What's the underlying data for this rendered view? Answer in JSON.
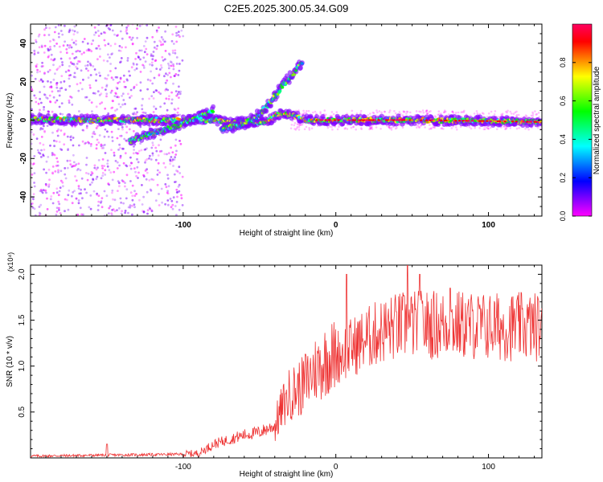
{
  "title": "C2E5.2025.300.05.34.G09",
  "chart_data": [
    {
      "type": "heatmap",
      "name": "spectrogram",
      "xlabel": "Height of straight line (km)",
      "ylabel": "Frequency (Hz)",
      "xlim": [
        -200,
        135
      ],
      "ylim": [
        -50,
        50
      ],
      "xticks": [
        -100,
        0,
        100
      ],
      "yticks": [
        -40,
        -20,
        0,
        20,
        40
      ],
      "tick_labels_x": [
        "-100",
        "0",
        "100"
      ],
      "tick_labels_y": [
        "-40",
        "-20",
        "0",
        "20",
        "40"
      ],
      "colorbar": {
        "label": "Normalized spectral amplitude",
        "range": [
          0,
          1
        ],
        "ticks": [
          "0.0",
          "0.2",
          "0.4",
          "0.6",
          "0.8"
        ],
        "colors": [
          "#ff00ff",
          "#8000ff",
          "#0000ff",
          "#0080ff",
          "#00ffff",
          "#00ff80",
          "#00ff00",
          "#80ff00",
          "#ffff00",
          "#ff8000",
          "#ff0000",
          "#ff0060"
        ]
      },
      "features": [
        {
          "name": "noise-region",
          "x_range": [
            -200,
            -100
          ],
          "freq_range": [
            -50,
            50
          ]
        },
        {
          "name": "main-band",
          "x": [
            -200,
            -160,
            -130,
            -120,
            -100,
            -80,
            -70,
            -60,
            -45,
            -38,
            -35,
            -30,
            -20,
            0,
            50,
            100,
            135
          ],
          "freq": [
            0.5,
            0,
            0,
            0,
            0,
            0,
            -1,
            -1,
            -1,
            3,
            3,
            3,
            0,
            0,
            0,
            -0.5,
            -1
          ]
        },
        {
          "name": "lower-branch",
          "x": [
            -135,
            -120,
            -100,
            -80
          ],
          "freq": [
            -11,
            -7,
            -2,
            5
          ]
        },
        {
          "name": "upper-branch",
          "x": [
            -75,
            -60,
            -50,
            -42,
            -35,
            -28,
            -22
          ],
          "freq": [
            -5,
            -2,
            3,
            10,
            18,
            24,
            30
          ]
        }
      ]
    },
    {
      "type": "line",
      "name": "snr",
      "xlabel": "Height of straight line (km)",
      "ylabel": "SNR (10 * v/v)",
      "multiplier_label": "(x10⁴)",
      "xlim": [
        -200,
        135
      ],
      "ylim": [
        0,
        2.1
      ],
      "xticks": [
        -100,
        0,
        100
      ],
      "yticks": [
        0.5,
        1.0,
        1.5,
        2.0
      ],
      "tick_labels_x": [
        "-100",
        "0",
        "100"
      ],
      "tick_labels_y": [
        "0.5",
        "1.0",
        "1.5",
        "2.0"
      ],
      "color": "#ee3333",
      "series": [
        {
          "name": "SNR envelope",
          "x": [
            -200,
            -150,
            -100,
            -90,
            -80,
            -70,
            -60,
            -50,
            -40,
            -35,
            -30,
            -25,
            -20,
            -15,
            -10,
            -5,
            0,
            10,
            20,
            30,
            40,
            50,
            60,
            70,
            80,
            90,
            100,
            110,
            120,
            135
          ],
          "values": [
            0.02,
            0.03,
            0.04,
            0.05,
            0.15,
            0.2,
            0.25,
            0.28,
            0.35,
            0.55,
            0.7,
            0.75,
            0.8,
            0.95,
            1.0,
            1.1,
            1.1,
            1.2,
            1.3,
            1.38,
            1.43,
            1.45,
            1.45,
            1.45,
            1.45,
            1.44,
            1.43,
            1.43,
            1.43,
            1.43
          ]
        }
      ],
      "spikes": [
        {
          "x": -150,
          "value": 0.15
        },
        {
          "x": -33,
          "value": 0.7
        },
        {
          "x": -20,
          "value": 1.13
        },
        {
          "x": 7,
          "value": 2.0
        },
        {
          "x": 47,
          "value": 2.1
        },
        {
          "x": 55,
          "value": 2.0
        },
        {
          "x": 75,
          "value": 1.85
        }
      ]
    }
  ]
}
